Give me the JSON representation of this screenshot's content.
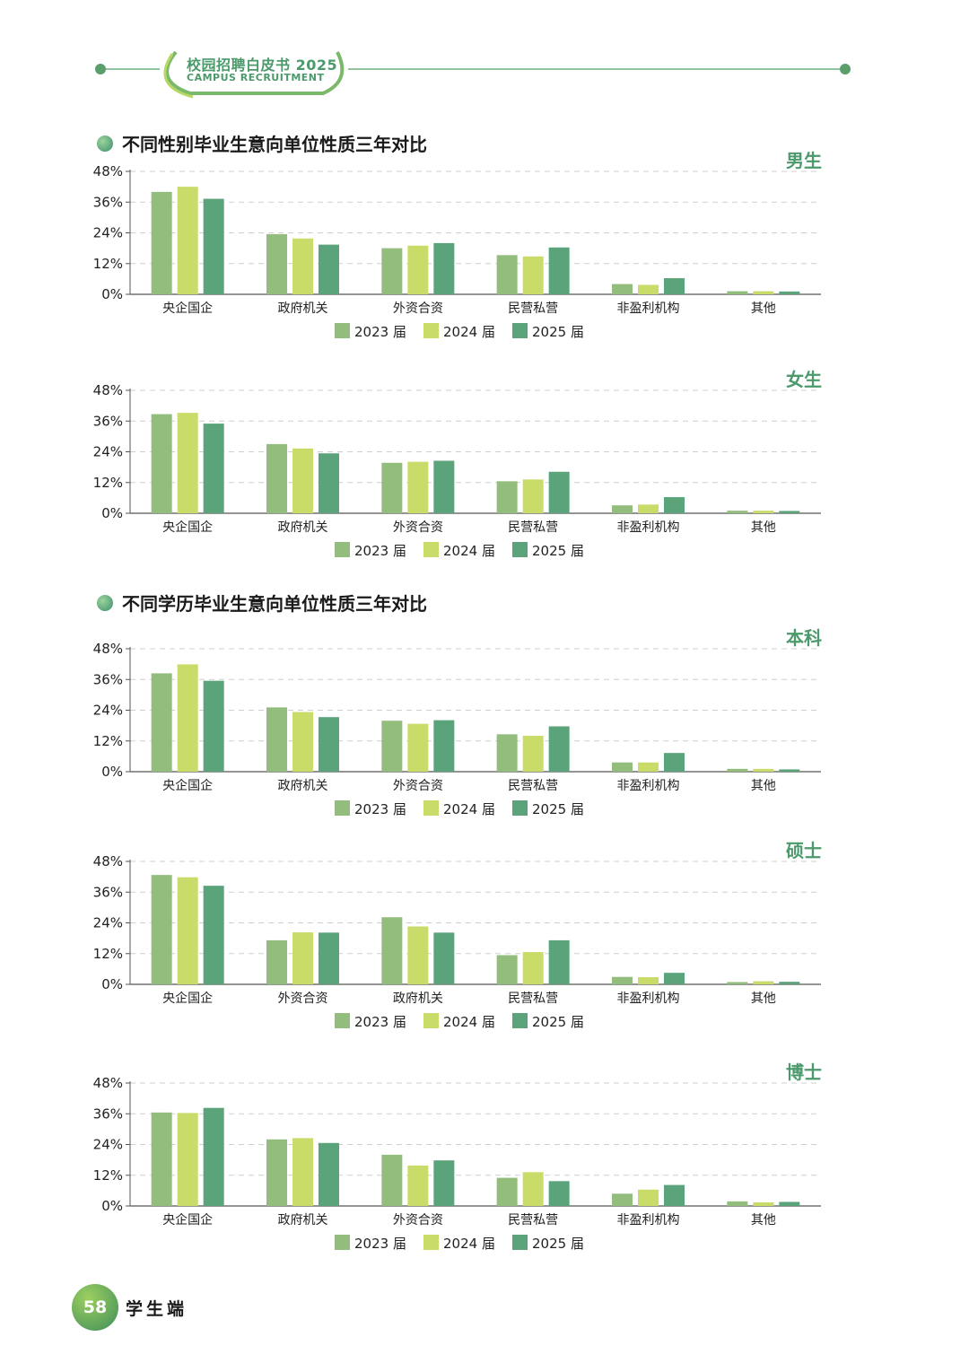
{
  "header": {
    "title": "校园招聘白皮书 2025",
    "subtitle": "CAMPUS RECRUITMENT"
  },
  "sections": [
    {
      "title": "不同性别毕业生意向单位性质三年对比"
    },
    {
      "title": "不同学历毕业生意向单位性质三年对比"
    }
  ],
  "colors": {
    "series_2023": "#93bd7d",
    "series_2024": "#c9dc6a",
    "series_2025": "#5ba47b",
    "accent": "#4c9a6c",
    "grid": "#cfcfcf",
    "axis": "#555555"
  },
  "chart_data": [
    {
      "type": "bar",
      "title": "男生",
      "categories": [
        "央企国企",
        "政府机关",
        "外资合资",
        "民营私营",
        "非盈利机构",
        "其他"
      ],
      "series": [
        {
          "name": "2023 届",
          "values": [
            40.0,
            23.5,
            18.0,
            15.3,
            4.0,
            1.2
          ]
        },
        {
          "name": "2024 届",
          "values": [
            42.0,
            21.8,
            19.0,
            14.8,
            3.7,
            1.2
          ]
        },
        {
          "name": "2025 届",
          "values": [
            37.3,
            19.4,
            20.0,
            18.3,
            6.3,
            1.1
          ]
        }
      ],
      "yticks": [
        "0%",
        "12%",
        "24%",
        "36%",
        "48%"
      ],
      "ylim": [
        0,
        48
      ]
    },
    {
      "type": "bar",
      "title": "女生",
      "categories": [
        "央企国企",
        "政府机关",
        "外资合资",
        "民营私营",
        "非盈利机构",
        "其他"
      ],
      "series": [
        {
          "name": "2023 届",
          "values": [
            38.7,
            27.0,
            19.7,
            12.5,
            3.1,
            1.0
          ]
        },
        {
          "name": "2024 届",
          "values": [
            39.2,
            25.3,
            20.1,
            13.2,
            3.4,
            1.0
          ]
        },
        {
          "name": "2025 届",
          "values": [
            35.0,
            23.4,
            20.5,
            16.2,
            6.3,
            0.9
          ]
        }
      ],
      "yticks": [
        "0%",
        "12%",
        "24%",
        "36%",
        "48%"
      ],
      "ylim": [
        0,
        48
      ]
    },
    {
      "type": "bar",
      "title": "本科",
      "categories": [
        "央企国企",
        "政府机关",
        "外资合资",
        "民营私营",
        "非盈利机构",
        "其他"
      ],
      "series": [
        {
          "name": "2023 届",
          "values": [
            38.4,
            25.1,
            19.9,
            14.6,
            3.6,
            1.1
          ]
        },
        {
          "name": "2024 届",
          "values": [
            41.9,
            23.3,
            18.7,
            14.0,
            3.6,
            1.1
          ]
        },
        {
          "name": "2025 届",
          "values": [
            35.5,
            21.3,
            20.1,
            17.7,
            7.3,
            0.9
          ]
        }
      ],
      "yticks": [
        "0%",
        "12%",
        "24%",
        "36%",
        "48%"
      ],
      "ylim": [
        0,
        48
      ]
    },
    {
      "type": "bar",
      "title": "硕士",
      "categories": [
        "央企国企",
        "外资合资",
        "政府机关",
        "民营私营",
        "非盈利机构",
        "其他"
      ],
      "series": [
        {
          "name": "2023 届",
          "values": [
            42.7,
            17.2,
            26.2,
            11.4,
            2.9,
            0.9
          ]
        },
        {
          "name": "2024 届",
          "values": [
            41.8,
            20.3,
            22.6,
            12.6,
            2.8,
            1.2
          ]
        },
        {
          "name": "2025 届",
          "values": [
            38.5,
            20.2,
            20.2,
            17.2,
            4.5,
            1.0
          ]
        }
      ],
      "yticks": [
        "0%",
        "12%",
        "24%",
        "36%",
        "48%"
      ],
      "ylim": [
        0,
        48
      ]
    },
    {
      "type": "bar",
      "title": "博士",
      "categories": [
        "央企国企",
        "政府机关",
        "外资合资",
        "民营私营",
        "非盈利机构",
        "其他"
      ],
      "series": [
        {
          "name": "2023 届",
          "values": [
            36.5,
            26.0,
            20.0,
            11.0,
            4.8,
            1.8
          ]
        },
        {
          "name": "2024 届",
          "values": [
            36.3,
            26.5,
            15.8,
            13.2,
            6.4,
            1.4
          ]
        },
        {
          "name": "2025 届",
          "values": [
            38.3,
            24.6,
            17.8,
            9.7,
            8.2,
            1.6
          ]
        }
      ],
      "yticks": [
        "0%",
        "12%",
        "24%",
        "36%",
        "48%"
      ],
      "ylim": [
        0,
        48
      ]
    }
  ],
  "footer": {
    "page_number": "58",
    "label": "学生端"
  }
}
